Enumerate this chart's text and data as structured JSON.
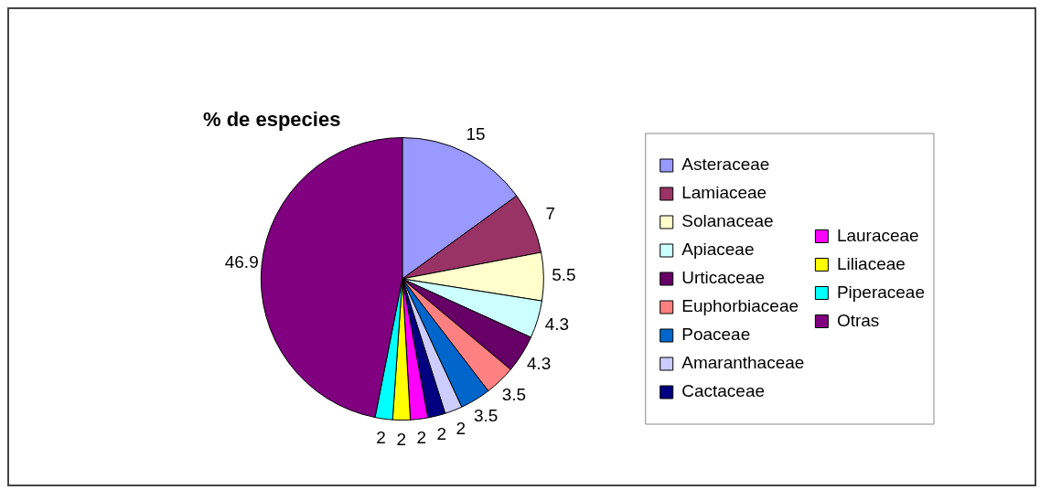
{
  "chart_data": {
    "type": "pie",
    "title": "% de especies",
    "categories": [
      "Asteraceae",
      "Lamiaceae",
      "Solanaceae",
      "Apiaceae",
      "Urticaceae",
      "Euphorbiaceae",
      "Poaceae",
      "Amaranthaceae",
      "Cactaceae",
      "Lauraceae",
      "Liliaceae",
      "Piperaceae",
      "Otras"
    ],
    "values": [
      15,
      7,
      5.5,
      4.3,
      4.3,
      3.5,
      3.5,
      2,
      2,
      2,
      2,
      2,
      46.9
    ],
    "colors": [
      "#9999ff",
      "#993366",
      "#ffffcc",
      "#ccffff",
      "#660066",
      "#ff8080",
      "#0066cc",
      "#ccccff",
      "#000080",
      "#ff00ff",
      "#ffff00",
      "#00ffff",
      "#800080"
    ],
    "legend": "right",
    "data_labels": true
  }
}
